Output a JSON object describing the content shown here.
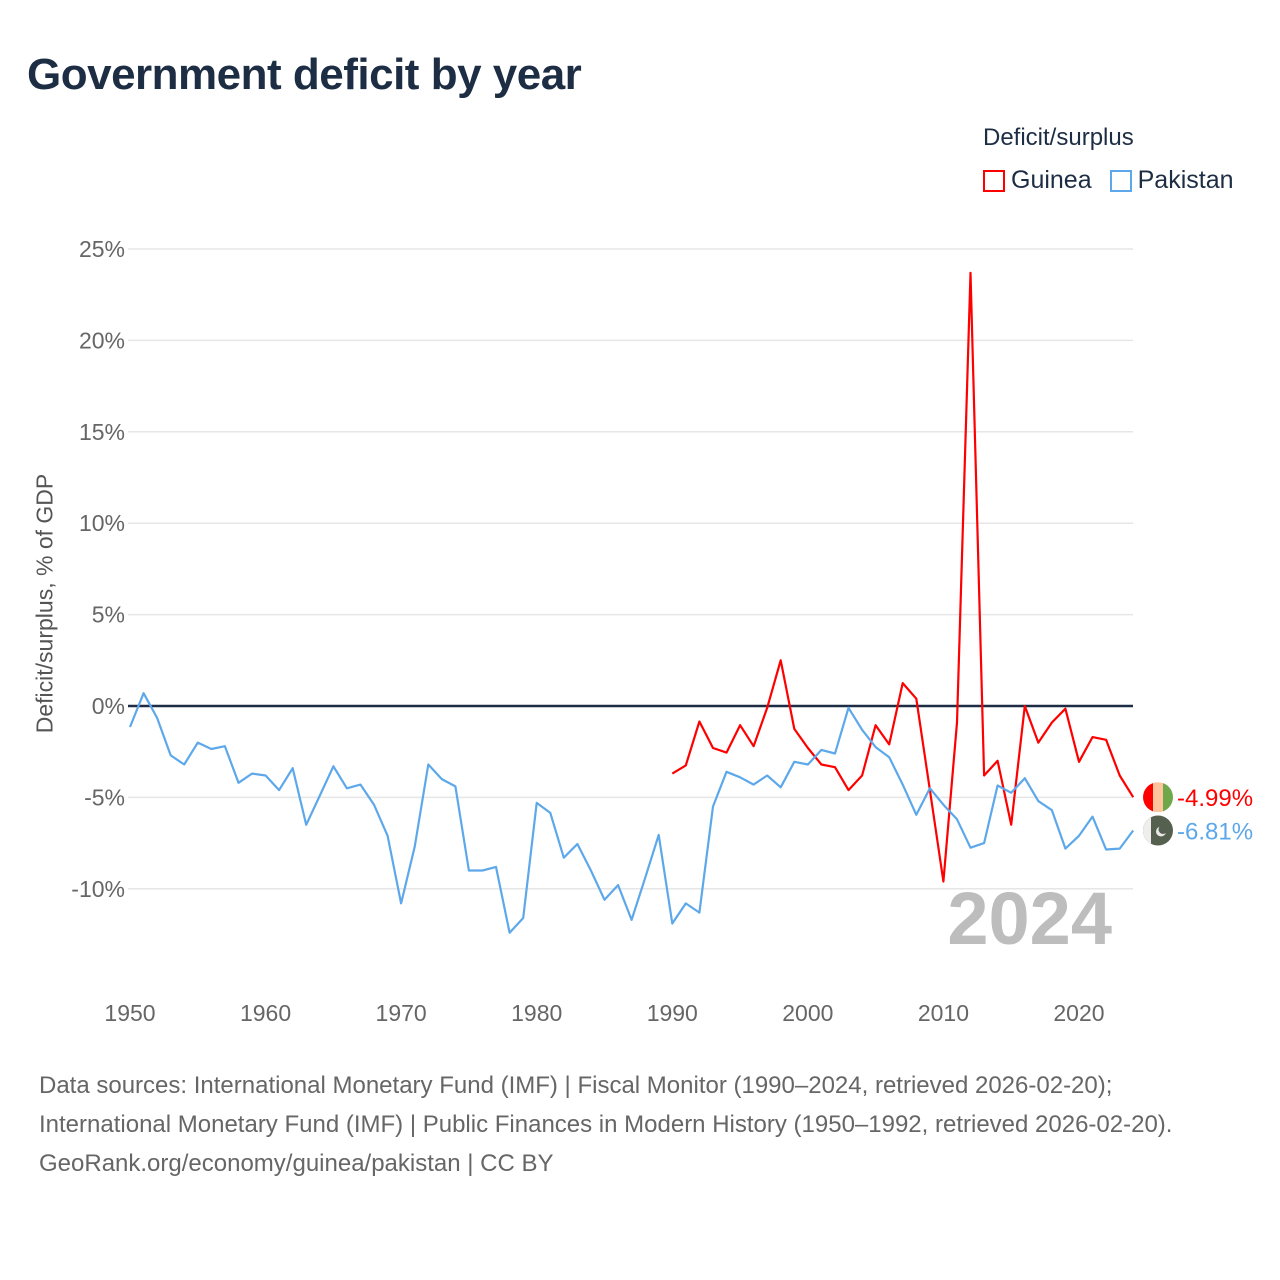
{
  "title": "Government deficit by year",
  "legend": {
    "title": "Deficit/surplus",
    "items": [
      {
        "name": "Guinea",
        "color": "#ff0000"
      },
      {
        "name": "Pakistan",
        "color": "#5da8ea"
      }
    ]
  },
  "footer": {
    "sources": "Data sources: International Monetary Fund (IMF) | Fiscal Monitor (1990–2024, retrieved 2026-02-20); International Monetary Fund (IMF) | Public Finances in Modern History (1950–1992, retrieved 2026-02-20).",
    "credit": "GeoRank.org/economy/guinea/pakistan | CC BY"
  },
  "chart_data": {
    "type": "line",
    "title": "Government deficit by year",
    "ylabel": "Deficit/surplus, % of GDP",
    "xlabel": "",
    "xlim": [
      1950,
      2024
    ],
    "ylim": [
      -15,
      25
    ],
    "x_ticks": [
      "1950",
      "1960",
      "1970",
      "1980",
      "1990",
      "2000",
      "2010",
      "2020"
    ],
    "y_ticks": [
      {
        "v": 25,
        "label": "25%"
      },
      {
        "v": 20,
        "label": "20%"
      },
      {
        "v": 15,
        "label": "15%"
      },
      {
        "v": 10,
        "label": "10%"
      },
      {
        "v": 5,
        "label": "5%"
      },
      {
        "v": 0,
        "label": "0%"
      },
      {
        "v": -5,
        "label": "-5%"
      },
      {
        "v": -10,
        "label": "-10%"
      }
    ],
    "year_watermark": "2024",
    "series": [
      {
        "name": "Guinea",
        "color": "#ff0000",
        "end_label": "-4.99%",
        "start_year": 1990,
        "values": [
          -3.7,
          -3.25,
          -0.85,
          -2.3,
          -2.55,
          -1.05,
          -2.2,
          -0.1,
          2.5,
          -1.25,
          -2.3,
          -3.2,
          -3.35,
          -4.6,
          -3.8,
          -1.05,
          -2.1,
          1.25,
          0.4,
          -4.6,
          -9.6,
          -0.9,
          23.7,
          -3.8,
          -3.0,
          -6.5,
          0.0,
          -2.0,
          -0.9,
          -0.15,
          -3.05,
          -1.7,
          -1.85,
          -3.8,
          -4.99
        ]
      },
      {
        "name": "Pakistan",
        "color": "#5da8ea",
        "end_label": "-6.81%",
        "start_year": 1950,
        "values": [
          -1.15,
          0.7,
          -0.65,
          -2.7,
          -3.2,
          -2.0,
          -2.35,
          -2.2,
          -4.2,
          -3.7,
          -3.8,
          -4.6,
          -3.4,
          -6.5,
          -4.9,
          -3.3,
          -4.5,
          -4.3,
          -5.4,
          -7.1,
          -10.8,
          -7.7,
          -3.2,
          -4.0,
          -4.4,
          -9.0,
          -9.0,
          -8.8,
          -12.4,
          -11.6,
          -5.3,
          -5.85,
          -8.3,
          -7.55,
          -9.0,
          -10.6,
          -9.8,
          -11.7,
          -9.4,
          -7.05,
          -11.9,
          -10.8,
          -11.3,
          -5.5,
          -3.6,
          -3.9,
          -4.3,
          -3.8,
          -4.45,
          -3.05,
          -3.2,
          -2.4,
          -2.6,
          -0.1,
          -1.3,
          -2.25,
          -2.8,
          -4.3,
          -5.95,
          -4.5,
          -5.4,
          -6.2,
          -7.75,
          -7.5,
          -4.35,
          -4.75,
          -3.95,
          -5.2,
          -5.7,
          -7.8,
          -7.1,
          -6.05,
          -7.85,
          -7.8,
          -6.81
        ]
      }
    ]
  }
}
